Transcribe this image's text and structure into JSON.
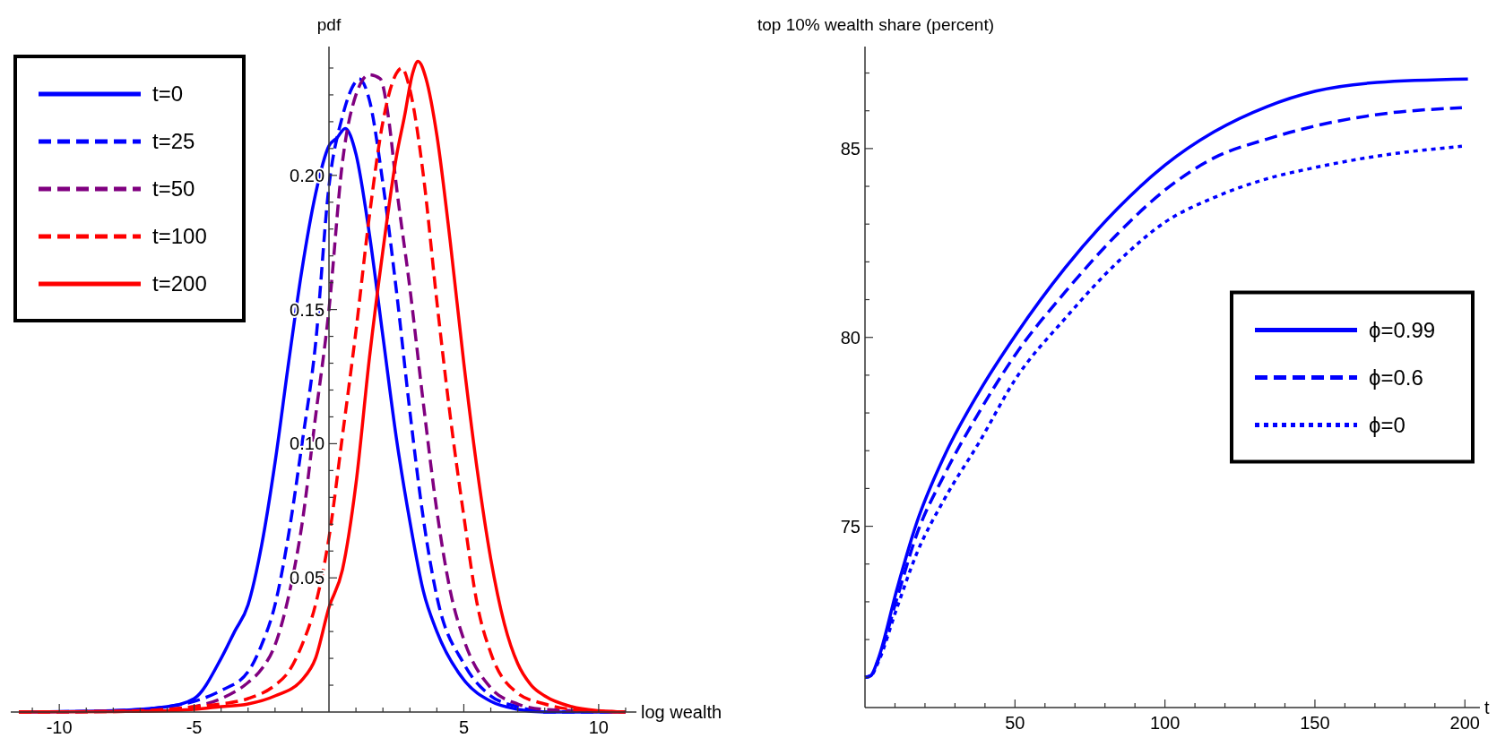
{
  "chart_data": [
    {
      "type": "line",
      "ylabel": "pdf",
      "xlabel": "log wealth",
      "xlim": [
        -11.8,
        11.4
      ],
      "ylim": [
        0,
        0.248
      ],
      "legend": "top left",
      "xticks": [
        {
          "value": -11,
          "label": null
        },
        -10,
        {
          "value": -9,
          "label": null
        },
        {
          "value": -8,
          "label": null
        },
        {
          "value": -7,
          "label": null
        },
        {
          "value": -6,
          "label": null
        },
        -5,
        {
          "value": -4,
          "label": null
        },
        {
          "value": -3,
          "label": null
        },
        {
          "value": -2,
          "label": null
        },
        {
          "value": -1,
          "label": null
        },
        {
          "value": 1,
          "label": null
        },
        {
          "value": 2,
          "label": null
        },
        {
          "value": 3,
          "label": null
        },
        {
          "value": 4,
          "label": null
        },
        5,
        {
          "value": 6,
          "label": null
        },
        {
          "value": 7,
          "label": null
        },
        {
          "value": 8,
          "label": null
        },
        {
          "value": 9,
          "label": null
        },
        10,
        {
          "value": 11,
          "label": null
        }
      ],
      "yticks": [
        {
          "value": 0.01,
          "label": null
        },
        {
          "value": 0.02,
          "label": null
        },
        {
          "value": 0.03,
          "label": null
        },
        {
          "value": 0.04,
          "label": null
        },
        {
          "value": 0.05,
          "label": "0.05"
        },
        {
          "value": 0.06,
          "label": null
        },
        {
          "value": 0.07,
          "label": null
        },
        {
          "value": 0.08,
          "label": null
        },
        {
          "value": 0.09,
          "label": null
        },
        {
          "value": 0.1,
          "label": "0.10"
        },
        {
          "value": 0.11,
          "label": null
        },
        {
          "value": 0.12,
          "label": null
        },
        {
          "value": 0.13,
          "label": null
        },
        {
          "value": 0.14,
          "label": null
        },
        {
          "value": 0.15,
          "label": "0.15"
        },
        {
          "value": 0.16,
          "label": null
        },
        {
          "value": 0.17,
          "label": null
        },
        {
          "value": 0.18,
          "label": null
        },
        {
          "value": 0.19,
          "label": null
        },
        {
          "value": 0.2,
          "label": "0.20"
        },
        {
          "value": 0.21,
          "label": null
        },
        {
          "value": 0.22,
          "label": null
        },
        {
          "value": 0.23,
          "label": null
        },
        {
          "value": 0.24,
          "label": null
        }
      ],
      "series": [
        {
          "name": "t=0",
          "color": "#0000ff",
          "line_style": "solid",
          "x": [
            -11.5,
            -8,
            -6,
            -5,
            -4,
            -3.5,
            -3,
            -2.5,
            -2,
            -1.5,
            -1,
            -0.5,
            0,
            0.3,
            0.6,
            1,
            1.5,
            2,
            2.5,
            3,
            3.5,
            4,
            5,
            6,
            7,
            8,
            11
          ],
          "values": [
            0,
            0.0005,
            0.002,
            0.005,
            0.02,
            0.03,
            0.04,
            0.062,
            0.093,
            0.13,
            0.165,
            0.193,
            0.211,
            0.214,
            0.2175,
            0.208,
            0.178,
            0.14,
            0.102,
            0.071,
            0.045,
            0.03,
            0.012,
            0.004,
            0.001,
            0,
            0
          ]
        },
        {
          "name": "t=25",
          "color": "#0000ff",
          "line_style": "dashed",
          "x": [
            -11.5,
            -8,
            -6,
            -5,
            -4,
            -3,
            -2.5,
            -2,
            -1.5,
            -1,
            -0.5,
            0,
            0.5,
            1,
            1.12,
            1.5,
            2,
            2.5,
            3,
            3.5,
            4,
            5,
            6,
            7,
            8,
            11
          ],
          "values": [
            0,
            0.0005,
            0.002,
            0.004,
            0.008,
            0.015,
            0.025,
            0.04,
            0.066,
            0.1,
            0.137,
            0.196,
            0.222,
            0.235,
            0.236,
            0.228,
            0.197,
            0.157,
            0.112,
            0.072,
            0.043,
            0.018,
            0.006,
            0.002,
            0,
            0
          ]
        },
        {
          "name": "t=50",
          "color": "#800080",
          "line_style": "dashed",
          "x": [
            -11.5,
            -8,
            -6,
            -5,
            -4,
            -3,
            -2.5,
            -2,
            -1.5,
            -1,
            -0.5,
            0,
            0.5,
            1,
            1.5,
            1.9,
            2.2,
            2.5,
            3,
            3.5,
            4,
            4.5,
            5,
            6,
            7,
            8,
            11
          ],
          "values": [
            0,
            0.0003,
            0.001,
            0.002,
            0.005,
            0.011,
            0.016,
            0.025,
            0.043,
            0.07,
            0.11,
            0.15,
            0.205,
            0.23,
            0.2375,
            0.236,
            0.222,
            0.196,
            0.158,
            0.115,
            0.075,
            0.045,
            0.027,
            0.009,
            0.003,
            0.001,
            0
          ]
        },
        {
          "name": "t=100",
          "color": "#ff0000",
          "line_style": "dashed",
          "x": [
            -11.5,
            -8,
            -6,
            -5,
            -4,
            -3,
            -2,
            -1.5,
            -1,
            -0.5,
            0,
            0.5,
            1,
            1.5,
            2,
            2.5,
            2.7,
            3,
            3.5,
            4,
            4.5,
            5,
            5.5,
            6,
            7,
            8,
            9,
            11
          ],
          "values": [
            0,
            0.0002,
            0.001,
            0.002,
            0.003,
            0.005,
            0.01,
            0.015,
            0.025,
            0.04,
            0.065,
            0.103,
            0.142,
            0.185,
            0.22,
            0.238,
            0.24,
            0.232,
            0.2,
            0.153,
            0.11,
            0.073,
            0.04,
            0.022,
            0.007,
            0.003,
            0.001,
            0
          ]
        },
        {
          "name": "t=200",
          "color": "#ff0000",
          "line_style": "solid",
          "x": [
            -11.5,
            -8,
            -6,
            -5,
            -4,
            -3,
            -2,
            -1,
            -0.5,
            0,
            0.5,
            1,
            1.5,
            2,
            2.5,
            2.8,
            3.1,
            3.3,
            3.6,
            4,
            4.5,
            5,
            5.5,
            6,
            6.5,
            7,
            7.5,
            8,
            9,
            10,
            11
          ],
          "values": [
            0,
            0.0002,
            0.0005,
            0.001,
            0.002,
            0.003,
            0.006,
            0.012,
            0.02,
            0.039,
            0.053,
            0.085,
            0.132,
            0.172,
            0.207,
            0.222,
            0.238,
            0.2425,
            0.236,
            0.215,
            0.175,
            0.13,
            0.09,
            0.057,
            0.033,
            0.018,
            0.01,
            0.006,
            0.002,
            0.0005,
            0
          ]
        }
      ]
    },
    {
      "type": "line",
      "ylabel": "top 10% wealth share (percent)",
      "xlabel": "t",
      "xlim": [
        0,
        205
      ],
      "ylim": [
        70.2,
        87.7
      ],
      "legend": "right",
      "xticks": [
        {
          "value": 10,
          "label": null
        },
        {
          "value": 20,
          "label": null
        },
        {
          "value": 30,
          "label": null
        },
        {
          "value": 40,
          "label": null
        },
        50,
        {
          "value": 60,
          "label": null
        },
        {
          "value": 70,
          "label": null
        },
        {
          "value": 80,
          "label": null
        },
        {
          "value": 90,
          "label": null
        },
        100,
        {
          "value": 110,
          "label": null
        },
        {
          "value": 120,
          "label": null
        },
        {
          "value": 130,
          "label": null
        },
        {
          "value": 140,
          "label": null
        },
        150,
        {
          "value": 160,
          "label": null
        },
        {
          "value": 170,
          "label": null
        },
        {
          "value": 180,
          "label": null
        },
        {
          "value": 190,
          "label": null
        },
        200
      ],
      "yticks": [
        {
          "value": 71,
          "label": null
        },
        {
          "value": 72,
          "label": null
        },
        {
          "value": 73,
          "label": null
        },
        {
          "value": 74,
          "label": null
        },
        75,
        {
          "value": 76,
          "label": null
        },
        {
          "value": 77,
          "label": null
        },
        {
          "value": 78,
          "label": null
        },
        {
          "value": 79,
          "label": null
        },
        80,
        {
          "value": 81,
          "label": null
        },
        {
          "value": 82,
          "label": null
        },
        {
          "value": 83,
          "label": null
        },
        {
          "value": 84,
          "label": null
        },
        85,
        {
          "value": 86,
          "label": null
        },
        {
          "value": 87,
          "label": null
        }
      ],
      "series": [
        {
          "name": "ϕ=0.99",
          "color": "#0000ff",
          "line_style": "solid",
          "x": [
            0,
            2,
            4.3,
            10.7,
            17.1,
            26.7,
            37.9,
            50.2,
            66.7,
            84.3,
            100,
            116.3,
            134,
            150.2,
            170.7,
            201
          ],
          "values": [
            71,
            71.05,
            71.46,
            73.35,
            75.06,
            76.9,
            78.54,
            80.06,
            81.84,
            83.42,
            84.56,
            85.44,
            86.11,
            86.52,
            86.75,
            86.84
          ]
        },
        {
          "name": "ϕ=0.6",
          "color": "#0000ff",
          "line_style": "dashed",
          "x": [
            0,
            2,
            4.3,
            10.7,
            17.1,
            26.7,
            37.9,
            50.2,
            66.7,
            84.3,
            100,
            116.3,
            134,
            150.2,
            170.7,
            199
          ],
          "values": [
            71,
            71.05,
            71.43,
            73.1,
            74.75,
            76.4,
            78,
            79.55,
            81.2,
            82.75,
            83.9,
            84.75,
            85.25,
            85.6,
            85.9,
            86.08
          ]
        },
        {
          "name": "ϕ=0",
          "color": "#0000ff",
          "line_style": "dotted",
          "x": [
            0,
            2,
            4.3,
            10.7,
            17.1,
            26.7,
            37.9,
            50.2,
            66.7,
            84.3,
            100,
            116.3,
            134,
            150.2,
            170.7,
            199
          ],
          "values": [
            71,
            71.04,
            71.38,
            72.85,
            74.25,
            75.75,
            77.2,
            78.9,
            80.5,
            82,
            83.05,
            83.7,
            84.2,
            84.5,
            84.8,
            85.06
          ]
        }
      ]
    }
  ]
}
